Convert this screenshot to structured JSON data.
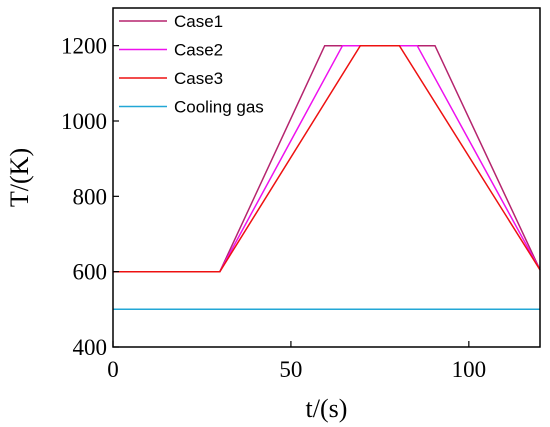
{
  "chart_data": {
    "type": "line",
    "xlabel": "t/(s)",
    "ylabel": "T/(K)",
    "xlim": [
      0,
      120
    ],
    "ylim": [
      400,
      1300
    ],
    "xticks": [
      0,
      50,
      100
    ],
    "yticks": [
      400,
      600,
      800,
      1000,
      1200
    ],
    "grid": false,
    "legend_position": "top-left",
    "series": [
      {
        "name": "Case1",
        "color": "#b5246e",
        "x": [
          0,
          30,
          59.5,
          90.5,
          120
        ],
        "y": [
          600,
          600,
          1200,
          1200,
          605
        ]
      },
      {
        "name": "Case2",
        "color": "#ee11ee",
        "x": [
          0,
          30,
          64.5,
          85.5,
          120
        ],
        "y": [
          600,
          600,
          1200,
          1200,
          605
        ]
      },
      {
        "name": "Case3",
        "color": "#ee1111",
        "x": [
          0,
          30,
          69.5,
          80.5,
          120
        ],
        "y": [
          600,
          600,
          1200,
          1200,
          605
        ]
      },
      {
        "name": "Cooling gas",
        "color": "#22a7d6",
        "x": [
          0,
          120
        ],
        "y": [
          500,
          500
        ]
      }
    ]
  }
}
